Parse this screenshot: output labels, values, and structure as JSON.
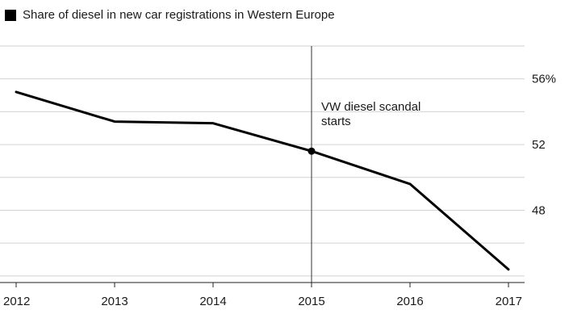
{
  "chart_data": {
    "type": "line",
    "legend": {
      "label": "Share of diesel in new car registrations in Western Europe",
      "color": "#000000",
      "placement": "top-left"
    },
    "x": [
      "2012",
      "2013",
      "2014",
      "2015",
      "2016",
      "2017"
    ],
    "series": [
      {
        "name": "Share of diesel in new car registrations in Western Europe",
        "values": [
          55.2,
          53.4,
          53.3,
          51.6,
          49.6,
          44.4
        ]
      }
    ],
    "ylim": [
      43.6,
      58.0
    ],
    "y_ticks": [
      {
        "value": 56,
        "label": "56%"
      },
      {
        "value": 52,
        "label": "52"
      },
      {
        "value": 48,
        "label": "48"
      }
    ],
    "gridlines_at": [
      44,
      46,
      48,
      50,
      52,
      54,
      56,
      58
    ],
    "grid": true,
    "annotation": {
      "x": "2015",
      "lines": [
        "VW diesel scandal",
        "starts"
      ]
    },
    "marker_at": "2015"
  }
}
